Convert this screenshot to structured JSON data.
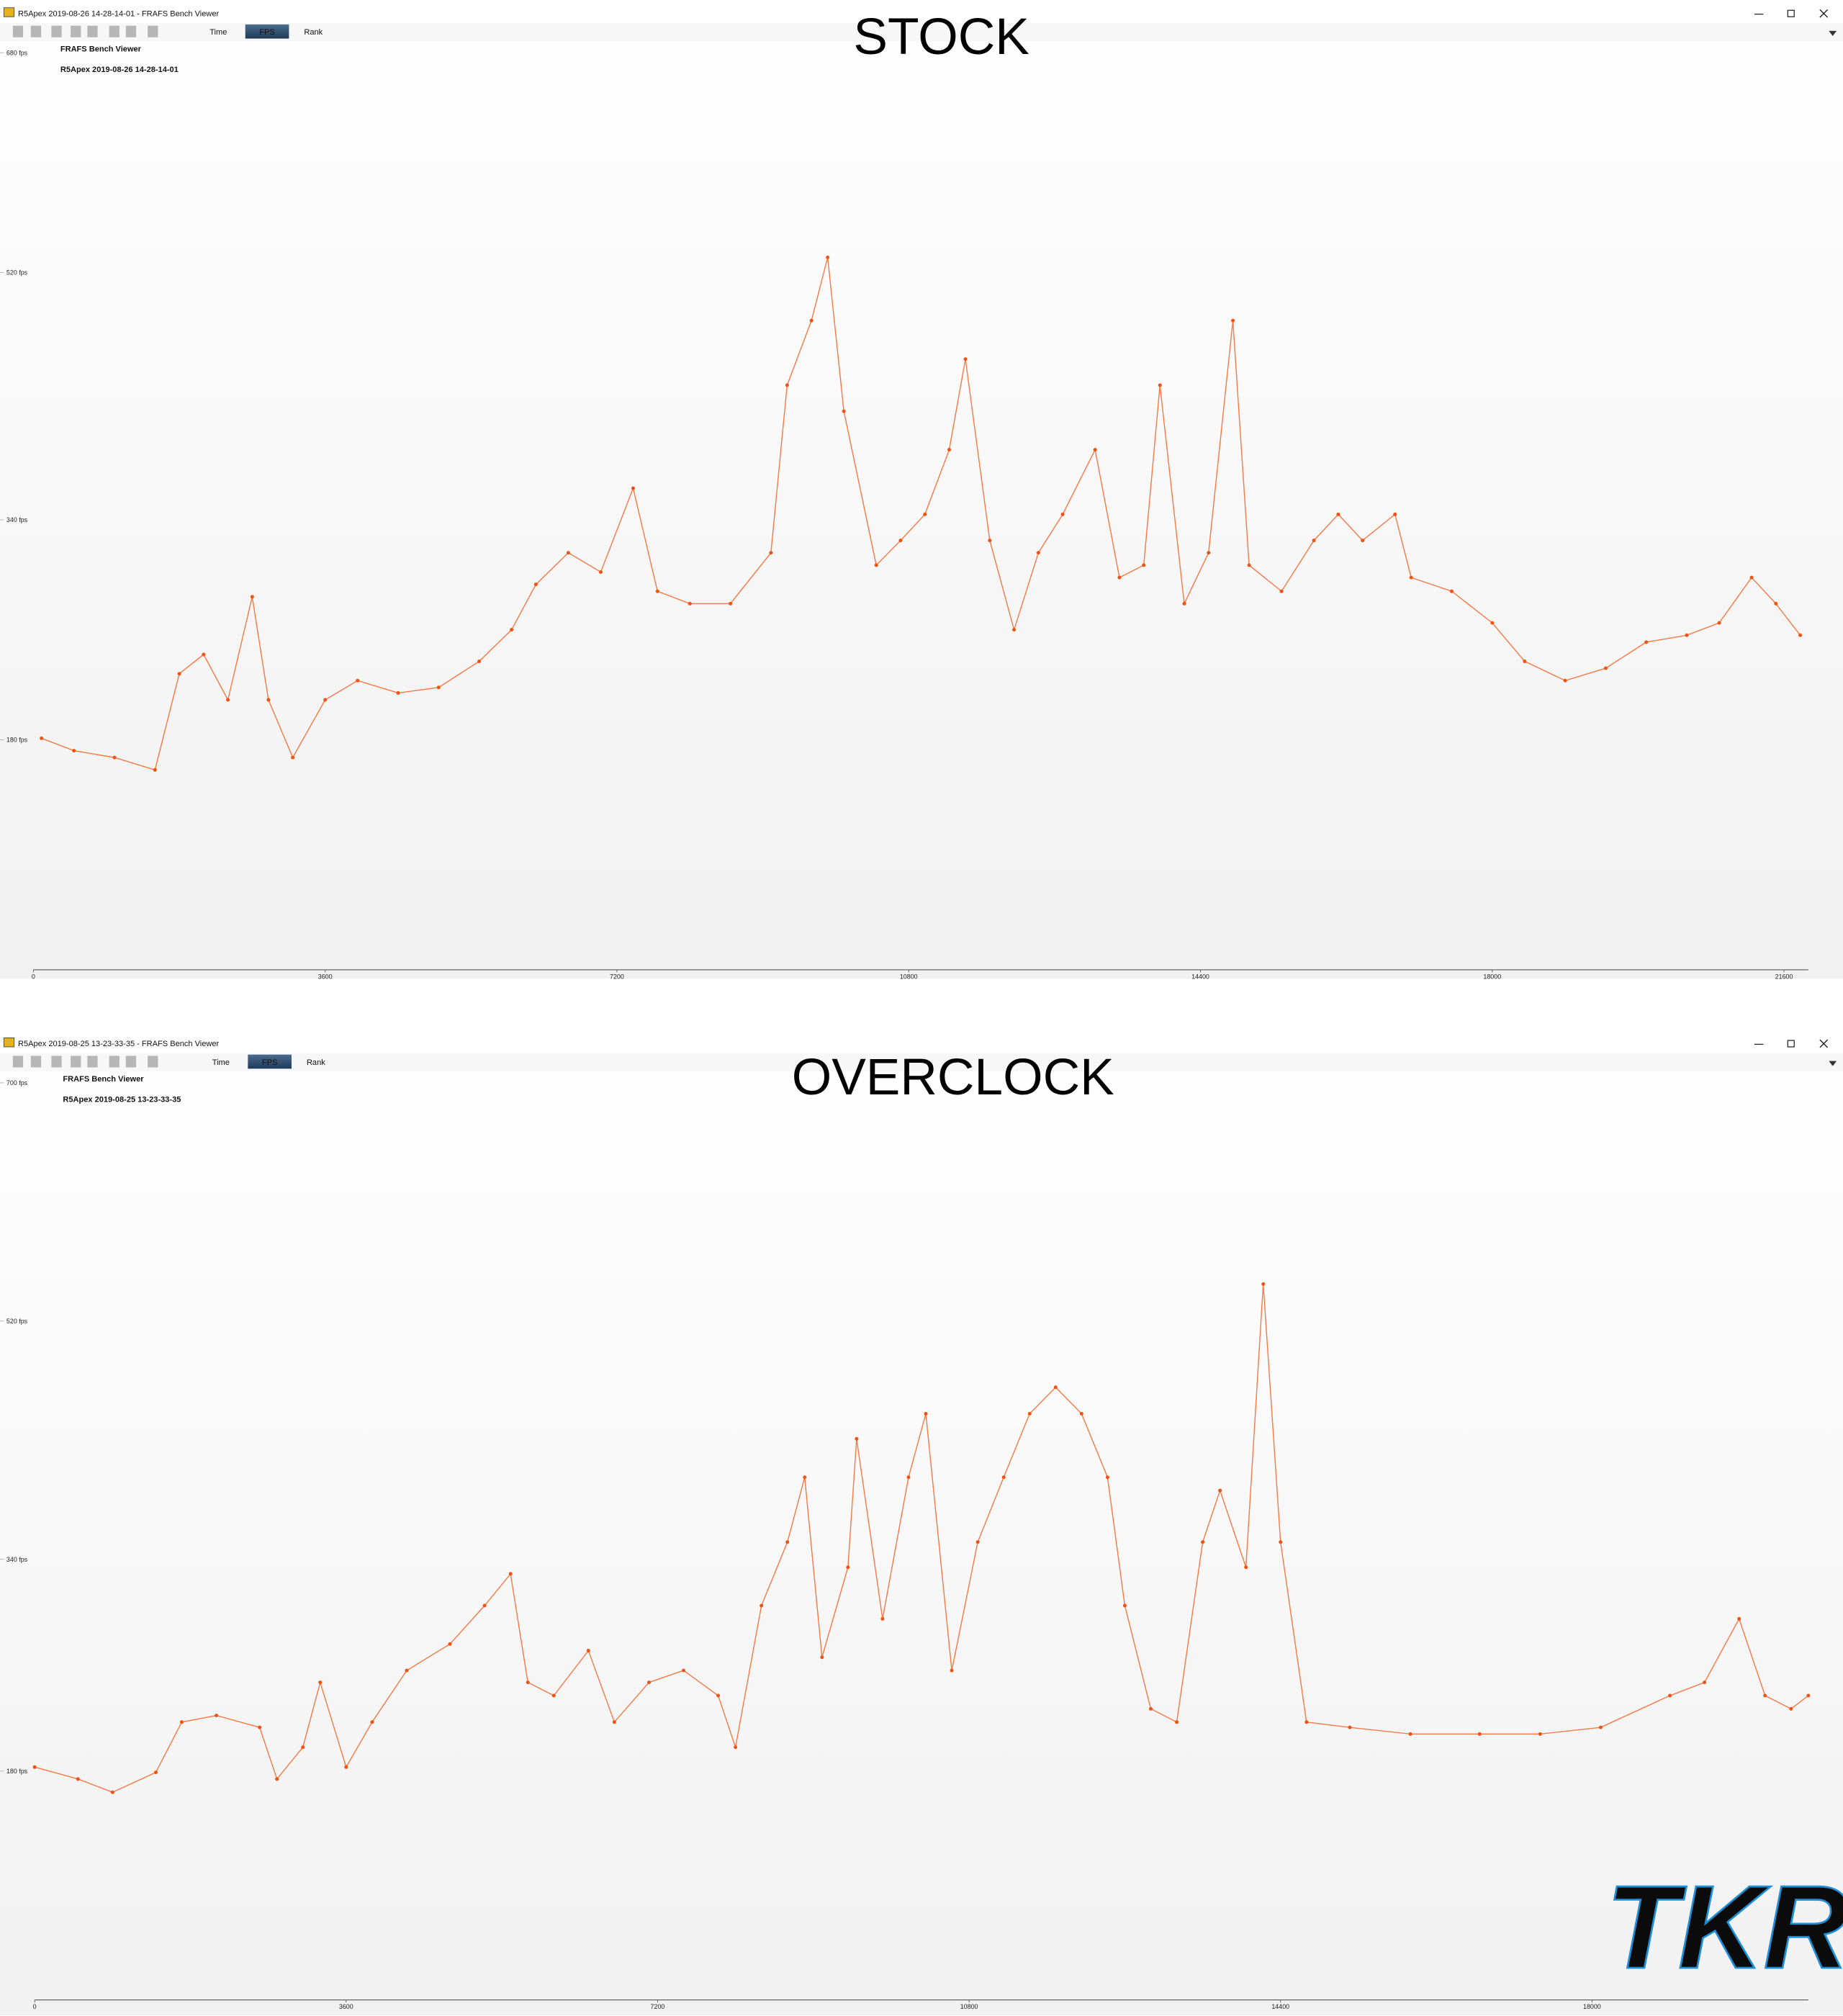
{
  "windows": [
    {
      "title": "R5Apex 2019-08-26 14-28-14-01 - FRAFS Bench Viewer",
      "tabs": [
        "Time",
        "FPS",
        "Rank"
      ],
      "heading": "FRAFS Bench Viewer",
      "session": "R5Apex 2019-08-26 14-28-14-01"
    },
    {
      "title": "R5Apex 2019-08-25 13-23-33-35 - FRAFS Bench Viewer",
      "tabs": [
        "Time",
        "FPS",
        "Rank"
      ],
      "heading": "FRAFS Bench Viewer",
      "session": "R5Apex 2019-08-25 13-23-33-35"
    }
  ],
  "logo": "TKR",
  "chart_data": [
    {
      "type": "line",
      "title": "STOCK",
      "color": "#f2520f",
      "grid": false,
      "x": [
        100,
        500,
        1000,
        1500,
        1800,
        2100,
        2400,
        2700,
        2900,
        3200,
        3600,
        4000,
        4500,
        5000,
        5500,
        5900,
        6200,
        6600,
        7000,
        7400,
        7700,
        8100,
        8600,
        9100,
        9300,
        9600,
        9800,
        10000,
        10400,
        10700,
        11000,
        11300,
        11500,
        11800,
        12100,
        12400,
        12700,
        13100,
        13400,
        13700,
        13900,
        14200,
        14500,
        14800,
        15000,
        15400,
        15800,
        16100,
        16400,
        16800,
        17000,
        17500,
        18000,
        18400,
        18900,
        19400,
        19900,
        20400,
        20800,
        21200,
        21500,
        21800
      ],
      "values": [
        181,
        172,
        167,
        158,
        228,
        242,
        209,
        284,
        209,
        167,
        209,
        223,
        214,
        218,
        237,
        260,
        293,
        316,
        302,
        363,
        288,
        279,
        279,
        316,
        438,
        485,
        531,
        419,
        307,
        325,
        344,
        391,
        457,
        325,
        260,
        316,
        344,
        391,
        298,
        307,
        438,
        279,
        316,
        485,
        307,
        288,
        325,
        344,
        325,
        344,
        298,
        288,
        265,
        237,
        223,
        232,
        251,
        256,
        265,
        298,
        279,
        256
      ],
      "xlim": [
        0,
        21900
      ],
      "xticks": [
        0,
        3600,
        7200,
        10800,
        14400,
        18000,
        21600
      ],
      "ylim": [
        20,
        690
      ],
      "yticks": [
        {
          "value": 680,
          "label": "680 fps"
        },
        {
          "value": 520,
          "label": "520 fps"
        },
        {
          "value": 340,
          "label": "340 fps"
        },
        {
          "value": 180,
          "label": "180 fps"
        }
      ]
    },
    {
      "type": "line",
      "title": "OVERCLOCK",
      "color": "#f2520f",
      "grid": false,
      "x": [
        0,
        500,
        900,
        1400,
        1700,
        2100,
        2600,
        2800,
        3100,
        3300,
        3600,
        3900,
        4300,
        4800,
        5200,
        5500,
        5700,
        6000,
        6400,
        6700,
        7100,
        7500,
        7900,
        8100,
        8400,
        8700,
        8900,
        9100,
        9400,
        9500,
        9800,
        10100,
        10300,
        10600,
        10900,
        11200,
        11500,
        11800,
        12100,
        12400,
        12600,
        12900,
        13200,
        13500,
        13700,
        14000,
        14200,
        14400,
        14700,
        15200,
        15900,
        16700,
        17400,
        18100,
        18900,
        19300,
        19700,
        20000,
        20300,
        20500
      ],
      "values": [
        183,
        174,
        164,
        179,
        217,
        222,
        213,
        174,
        198,
        247,
        183,
        217,
        256,
        276,
        305,
        329,
        247,
        237,
        271,
        217,
        247,
        256,
        237,
        198,
        305,
        353,
        402,
        266,
        334,
        431,
        295,
        402,
        450,
        256,
        353,
        402,
        450,
        470,
        450,
        402,
        305,
        227,
        217,
        353,
        392,
        334,
        548,
        353,
        217,
        213,
        208,
        208,
        208,
        213,
        237,
        247,
        295,
        237,
        227,
        237
      ],
      "xlim": [
        0,
        20500
      ],
      "xticks": [
        0,
        3600,
        7200,
        10800,
        14400,
        18000
      ],
      "ylim": [
        10,
        700
      ],
      "yticks": [
        {
          "value": 700,
          "label": "700 fps"
        },
        {
          "value": 520,
          "label": "520 fps"
        },
        {
          "value": 340,
          "label": "340 fps"
        },
        {
          "value": 180,
          "label": "180 fps"
        }
      ]
    }
  ]
}
